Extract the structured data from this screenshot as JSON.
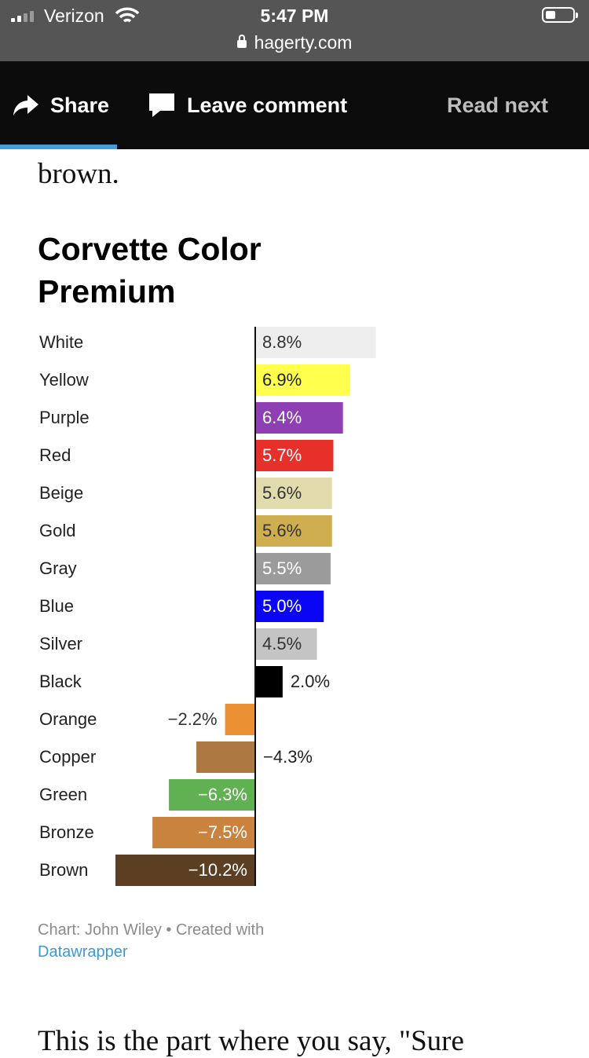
{
  "status_bar": {
    "carrier": "Verizon",
    "time": "5:47 PM",
    "url": "hagerty.com"
  },
  "toolbar": {
    "share_label": "Share",
    "comment_label": "Leave comment",
    "read_next_label": "Read next",
    "active_underline_color": "#4a9ad8"
  },
  "article": {
    "preceding_text": "brown.",
    "following_text": "This is the part where you say, \"Sure"
  },
  "chart_data": {
    "type": "bar",
    "orientation": "horizontal",
    "title": "Corvette Color Premium",
    "categories": [
      "White",
      "Yellow",
      "Purple",
      "Red",
      "Beige",
      "Gold",
      "Gray",
      "Blue",
      "Silver",
      "Black",
      "Orange",
      "Copper",
      "Green",
      "Bronze",
      "Brown"
    ],
    "values": [
      8.8,
      6.9,
      6.4,
      5.7,
      5.6,
      5.6,
      5.5,
      5.0,
      4.5,
      2.0,
      -2.2,
      -4.3,
      -6.3,
      -7.5,
      -10.2
    ],
    "labels": [
      "8.8%",
      "6.9%",
      "6.4%",
      "5.7%",
      "5.6%",
      "5.6%",
      "5.5%",
      "5.0%",
      "4.5%",
      "2.0%",
      "−2.2%",
      "−4.3%",
      "−6.3%",
      "−7.5%",
      "−10.2%"
    ],
    "colors": [
      "#eeeeee",
      "#ffff4d",
      "#8f3fb4",
      "#e8302a",
      "#e2dbae",
      "#cfae4f",
      "#9b9b9b",
      "#0a06f5",
      "#c4c4c4",
      "#000000",
      "#eb9033",
      "#ad7841",
      "#5fb152",
      "#c9833f",
      "#5c3f22"
    ],
    "label_colors": [
      "#333333",
      "#222222",
      "#ffffff",
      "#ffffff",
      "#333333",
      "#333333",
      "#ffffff",
      "#ffffff",
      "#333333",
      "#222222",
      "#333333",
      "#222222",
      "#ffffff",
      "#ffffff",
      "#ffffff"
    ],
    "label_inside": [
      true,
      true,
      true,
      true,
      true,
      true,
      true,
      true,
      true,
      false,
      false,
      false,
      true,
      true,
      true
    ],
    "xlim": [
      -12.5,
      10
    ]
  },
  "credit": {
    "text": "Chart: John Wiley • Created with",
    "link": "Datawrapper"
  }
}
